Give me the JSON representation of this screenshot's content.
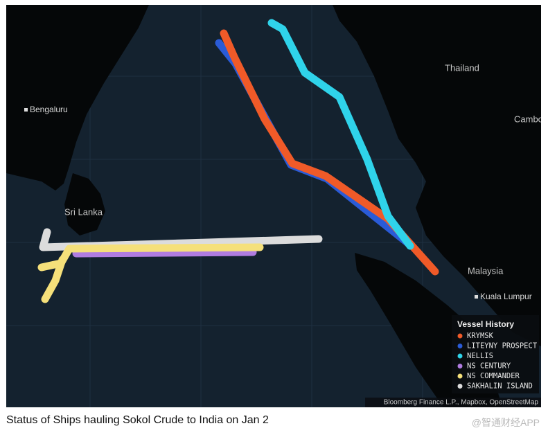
{
  "map": {
    "places": [
      "Bengaluru",
      "Kuala Lumpur"
    ],
    "countries": [
      "Sri Lanka",
      "Thailand",
      "Cambo",
      "Malaysia"
    ],
    "legend": {
      "title": "Vessel History",
      "entries": [
        {
          "name": "KRYMSK",
          "color": "#f05a28"
        },
        {
          "name": "LITEYNY PROSPECT",
          "color": "#2a5bd7"
        },
        {
          "name": "NELLIS",
          "color": "#2fd3ea"
        },
        {
          "name": "NS CENTURY",
          "color": "#b07ce0"
        },
        {
          "name": "NS COMMANDER",
          "color": "#f5e07a"
        },
        {
          "name": "SAKHALIN ISLAND",
          "color": "#dcdcdc"
        }
      ]
    },
    "attribution": "Bloomberg Finance L.P., Mapbox, OpenStreetMap"
  },
  "caption": "Status of Ships hauling Sokol Crude to India on Jan 2",
  "watermark": "@智通财经APP"
}
